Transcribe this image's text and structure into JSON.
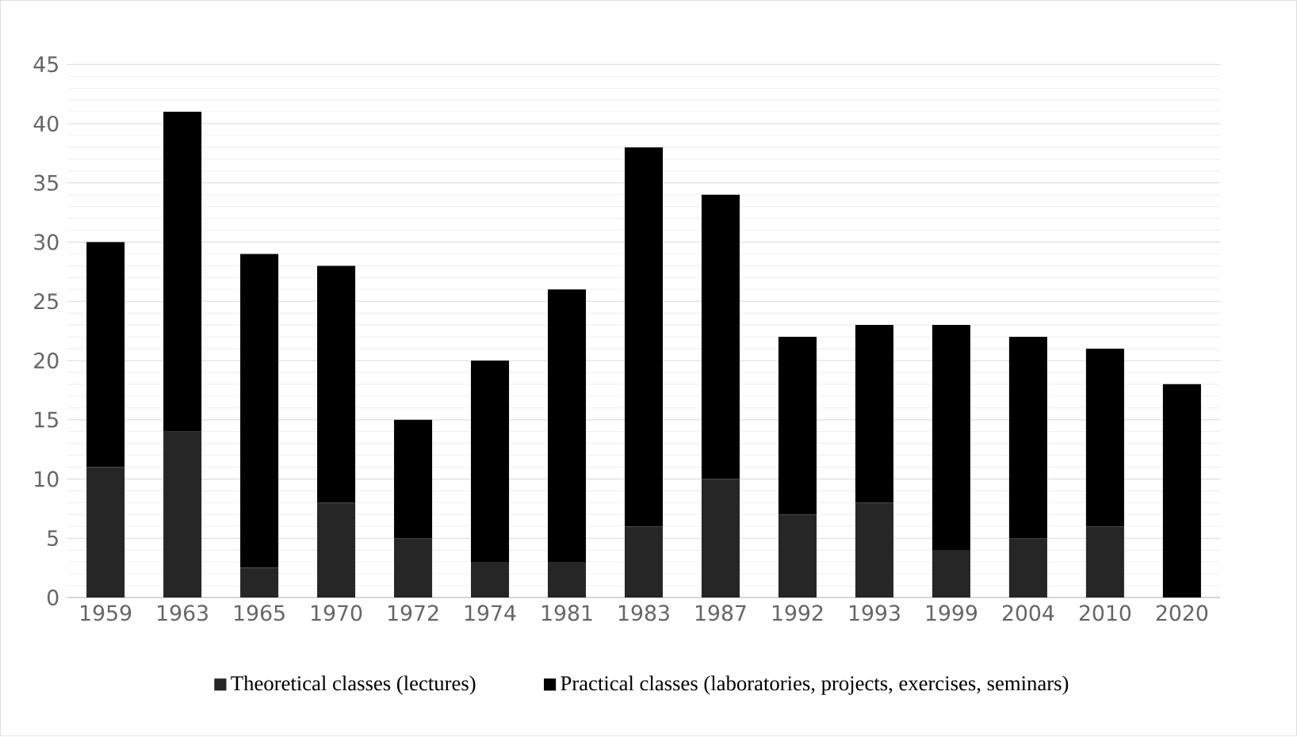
{
  "chart_data": {
    "type": "bar",
    "stacked": true,
    "categories": [
      "1959",
      "1963",
      "1965",
      "1970",
      "1972",
      "1974",
      "1981",
      "1983",
      "1987",
      "1992",
      "1993",
      "1999",
      "2004",
      "2010",
      "2020"
    ],
    "series": [
      {
        "name": "Theoretical classes (lectures)",
        "color": "#262626",
        "values": [
          11,
          14,
          2.5,
          8,
          5,
          3,
          3,
          6,
          10,
          7,
          8,
          4,
          5,
          6,
          0
        ]
      },
      {
        "name": "Practical classes (laboratories, projects, exercises, seminars)",
        "color": "#000000",
        "values": [
          19,
          27,
          26.5,
          20,
          10,
          17,
          23,
          32,
          24,
          15,
          15,
          19,
          17,
          15,
          18
        ]
      }
    ],
    "ylim": [
      0,
      45
    ],
    "yticks": [
      0,
      5,
      10,
      15,
      20,
      25,
      30,
      35,
      40,
      45
    ],
    "grid": "y",
    "legend": "bottom"
  }
}
